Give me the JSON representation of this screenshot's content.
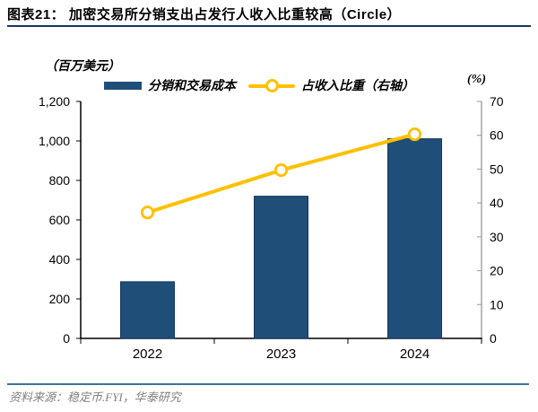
{
  "header": {
    "title": "图表21：  加密交易所分销支出占发行人收入比重较高（Circle）"
  },
  "chart": {
    "left_unit": "（百万美元）",
    "right_unit": "(%)",
    "legend": [
      {
        "label": "分销和交易成本",
        "swatch": "bar",
        "color": "#1F4E79"
      },
      {
        "label": "占收入比重（右轴）",
        "swatch": "line-open-circle",
        "color": "#FFC000"
      }
    ]
  },
  "chart_data": {
    "type": "combo-bar-line",
    "title": "加密交易所分销支出占发行人收入比重较高（Circle）",
    "categories": [
      "2022",
      "2023",
      "2024"
    ],
    "series": [
      {
        "name": "分销和交易成本",
        "type": "bar",
        "axis": "left",
        "color": "#1F4E79",
        "values": [
          287,
          720,
          1011
        ]
      },
      {
        "name": "占收入比重（右轴）",
        "type": "line",
        "axis": "right",
        "color": "#FFC000",
        "marker": "open-circle",
        "values": [
          37.2,
          49.7,
          60.3
        ]
      }
    ],
    "left_axis": {
      "unit": "（百万美元）",
      "min": 0,
      "max": 1200,
      "step": 200,
      "tick_labels": [
        "0",
        "200",
        "400",
        "600",
        "800",
        "1,000",
        "1,200"
      ]
    },
    "right_axis": {
      "unit": "(%)",
      "min": 0,
      "max": 70,
      "step": 10,
      "tick_labels": [
        "0",
        "10",
        "20",
        "30",
        "40",
        "50",
        "60",
        "70"
      ]
    },
    "grid": false,
    "legend_position": "top"
  },
  "footer": {
    "source": "资料来源：稳定币.FYI，华泰研究"
  },
  "colors": {
    "bar": "#1F4E79",
    "bar_border": "#163A5F",
    "line": "#FFC000",
    "title_rule": "#17375E",
    "bottom_rule": "#41719C",
    "source_text": "#808080",
    "axis_left": "#000000",
    "axis_right": "#A6A6A6",
    "tick_text": "#000000"
  }
}
